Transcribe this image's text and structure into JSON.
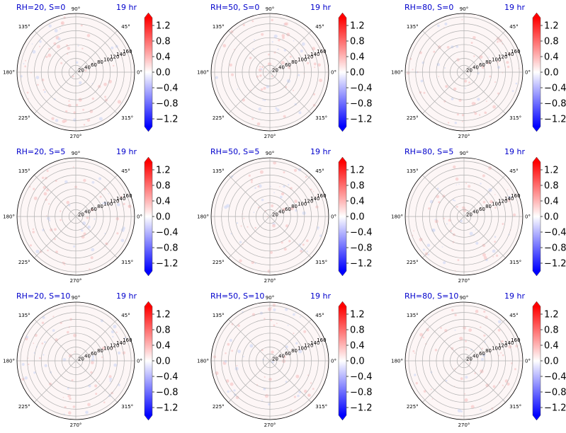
{
  "colors": {
    "title": "#0000cc",
    "axis": "#000000",
    "grid": "#b0b0b0",
    "cmap_low": "#0000ff",
    "cmap_mid": "#ffffff",
    "cmap_high": "#ff0000"
  },
  "chart_data": [
    {
      "type": "heatmap",
      "projection": "polar",
      "title": "RH=20, S=0",
      "time_label": "19 hr",
      "angle_ticks": [
        "0°",
        "45°",
        "90°",
        "135°",
        "180°",
        "225°",
        "270°",
        "315°"
      ],
      "radial_ticks": [
        "20",
        "40",
        "60",
        "80",
        "100",
        "120",
        "140",
        "160"
      ],
      "rlim": [
        0,
        170
      ],
      "grid": true,
      "colorbar": {
        "ticks": [
          "1.2",
          "0.8",
          "0.4",
          "0.0",
          "−0.4",
          "−0.8",
          "−1.2"
        ],
        "range": [
          -1.4,
          1.4
        ],
        "extend": "both"
      }
    },
    {
      "type": "heatmap",
      "projection": "polar",
      "title": "RH=50, S=0",
      "time_label": "19 hr",
      "angle_ticks": [
        "0°",
        "45°",
        "90°",
        "135°",
        "180°",
        "225°",
        "270°",
        "315°"
      ],
      "radial_ticks": [
        "20",
        "40",
        "60",
        "80",
        "100",
        "120",
        "140",
        "160"
      ],
      "rlim": [
        0,
        170
      ],
      "grid": true,
      "colorbar": {
        "ticks": [
          "1.2",
          "0.8",
          "0.4",
          "0.0",
          "−0.4",
          "−0.8",
          "−1.2"
        ],
        "range": [
          -1.4,
          1.4
        ],
        "extend": "both"
      }
    },
    {
      "type": "heatmap",
      "projection": "polar",
      "title": "RH=80, S=0",
      "time_label": "19 hr",
      "angle_ticks": [
        "0°",
        "45°",
        "90°",
        "135°",
        "180°",
        "225°",
        "270°",
        "315°"
      ],
      "radial_ticks": [
        "20",
        "40",
        "60",
        "80",
        "100",
        "120",
        "140",
        "160"
      ],
      "rlim": [
        0,
        170
      ],
      "grid": true,
      "colorbar": {
        "ticks": [
          "1.2",
          "0.8",
          "0.4",
          "0.0",
          "−0.4",
          "−0.8",
          "−1.2"
        ],
        "range": [
          -1.4,
          1.4
        ],
        "extend": "both"
      }
    },
    {
      "type": "heatmap",
      "projection": "polar",
      "title": "RH=20, S=5",
      "time_label": "19 hr",
      "angle_ticks": [
        "0°",
        "45°",
        "90°",
        "135°",
        "180°",
        "225°",
        "270°",
        "315°"
      ],
      "radial_ticks": [
        "20",
        "40",
        "60",
        "80",
        "100",
        "120",
        "140",
        "160"
      ],
      "rlim": [
        0,
        170
      ],
      "grid": true,
      "colorbar": {
        "ticks": [
          "1.2",
          "0.8",
          "0.4",
          "0.0",
          "−0.4",
          "−0.8",
          "−1.2"
        ],
        "range": [
          -1.4,
          1.4
        ],
        "extend": "both"
      }
    },
    {
      "type": "heatmap",
      "projection": "polar",
      "title": "RH=50, S=5",
      "time_label": "19 hr",
      "angle_ticks": [
        "0°",
        "45°",
        "90°",
        "135°",
        "180°",
        "225°",
        "270°",
        "315°"
      ],
      "radial_ticks": [
        "20",
        "40",
        "60",
        "80",
        "100",
        "120",
        "140",
        "160"
      ],
      "rlim": [
        0,
        170
      ],
      "grid": true,
      "colorbar": {
        "ticks": [
          "1.2",
          "0.8",
          "0.4",
          "0.0",
          "−0.4",
          "−0.8",
          "−1.2"
        ],
        "range": [
          -1.4,
          1.4
        ],
        "extend": "both"
      }
    },
    {
      "type": "heatmap",
      "projection": "polar",
      "title": "RH=80, S=5",
      "time_label": "19 hr",
      "angle_ticks": [
        "0°",
        "45°",
        "90°",
        "135°",
        "180°",
        "225°",
        "270°",
        "315°"
      ],
      "radial_ticks": [
        "20",
        "40",
        "60",
        "80",
        "100",
        "120",
        "140",
        "160"
      ],
      "rlim": [
        0,
        170
      ],
      "grid": true,
      "colorbar": {
        "ticks": [
          "1.2",
          "0.8",
          "0.4",
          "0.0",
          "−0.4",
          "−0.8",
          "−1.2"
        ],
        "range": [
          -1.4,
          1.4
        ],
        "extend": "both"
      }
    },
    {
      "type": "heatmap",
      "projection": "polar",
      "title": "RH=20, S=10",
      "time_label": "19 hr",
      "angle_ticks": [
        "0°",
        "45°",
        "90°",
        "135°",
        "180°",
        "225°",
        "270°",
        "315°"
      ],
      "radial_ticks": [
        "20",
        "40",
        "60",
        "80",
        "100",
        "120",
        "140",
        "160"
      ],
      "rlim": [
        0,
        170
      ],
      "grid": true,
      "colorbar": {
        "ticks": [
          "1.2",
          "0.8",
          "0.4",
          "0.0",
          "−0.4",
          "−0.8",
          "−1.2"
        ],
        "range": [
          -1.4,
          1.4
        ],
        "extend": "both"
      }
    },
    {
      "type": "heatmap",
      "projection": "polar",
      "title": "RH=50, S=10",
      "time_label": "19 hr",
      "angle_ticks": [
        "0°",
        "45°",
        "90°",
        "135°",
        "180°",
        "225°",
        "270°",
        "315°"
      ],
      "radial_ticks": [
        "20",
        "40",
        "60",
        "80",
        "100",
        "120",
        "140",
        "160"
      ],
      "rlim": [
        0,
        170
      ],
      "grid": true,
      "colorbar": {
        "ticks": [
          "1.2",
          "0.8",
          "0.4",
          "0.0",
          "−0.4",
          "−0.8",
          "−1.2"
        ],
        "range": [
          -1.4,
          1.4
        ],
        "extend": "both"
      }
    },
    {
      "type": "heatmap",
      "projection": "polar",
      "title": "RH=80, S=10",
      "time_label": "19 hr",
      "angle_ticks": [
        "0°",
        "45°",
        "90°",
        "135°",
        "180°",
        "225°",
        "270°",
        "315°"
      ],
      "radial_ticks": [
        "20",
        "40",
        "60",
        "80",
        "100",
        "120",
        "140",
        "160"
      ],
      "rlim": [
        0,
        170
      ],
      "grid": true,
      "colorbar": {
        "ticks": [
          "1.2",
          "0.8",
          "0.4",
          "0.0",
          "−0.4",
          "−0.8",
          "−1.2"
        ],
        "range": [
          -1.4,
          1.4
        ],
        "extend": "both"
      }
    }
  ]
}
